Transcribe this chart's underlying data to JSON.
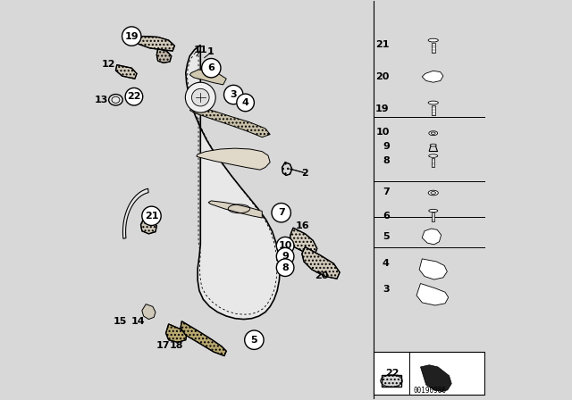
{
  "bg_color": "#d8d8d8",
  "panel_color": "#f0f0f0",
  "part_number": "00190986",
  "door_outline": {
    "x": [
      0.31,
      0.295,
      0.278,
      0.268,
      0.262,
      0.262,
      0.268,
      0.278,
      0.295,
      0.318,
      0.345,
      0.375,
      0.408,
      0.44,
      0.468,
      0.49,
      0.505,
      0.518,
      0.528,
      0.535,
      0.538,
      0.538,
      0.535,
      0.528,
      0.52,
      0.51,
      0.498,
      0.482,
      0.465,
      0.445,
      0.422,
      0.398,
      0.372,
      0.345,
      0.318,
      0.298,
      0.285,
      0.278,
      0.272,
      0.272,
      0.278,
      0.29,
      0.305,
      0.31
    ],
    "y": [
      0.895,
      0.89,
      0.878,
      0.862,
      0.842,
      0.818,
      0.792,
      0.765,
      0.738,
      0.71,
      0.682,
      0.655,
      0.628,
      0.602,
      0.578,
      0.555,
      0.532,
      0.508,
      0.482,
      0.455,
      0.425,
      0.395,
      0.365,
      0.338,
      0.315,
      0.295,
      0.278,
      0.265,
      0.255,
      0.248,
      0.245,
      0.245,
      0.25,
      0.258,
      0.268,
      0.282,
      0.3,
      0.322,
      0.348,
      0.378,
      0.408,
      0.438,
      0.468,
      0.498
    ]
  },
  "door_inner": {
    "x": [
      0.302,
      0.288,
      0.275,
      0.268,
      0.265,
      0.268,
      0.278,
      0.295,
      0.318,
      0.345,
      0.378,
      0.41,
      0.44,
      0.468,
      0.49,
      0.508,
      0.522,
      0.53,
      0.532,
      0.53,
      0.525,
      0.515,
      0.502,
      0.486,
      0.468,
      0.448,
      0.425,
      0.4,
      0.375,
      0.35,
      0.325,
      0.305,
      0.29,
      0.282,
      0.278,
      0.28,
      0.288,
      0.298,
      0.302
    ],
    "y": [
      0.882,
      0.87,
      0.852,
      0.83,
      0.805,
      0.778,
      0.75,
      0.722,
      0.694,
      0.666,
      0.638,
      0.61,
      0.584,
      0.56,
      0.538,
      0.515,
      0.49,
      0.462,
      0.432,
      0.402,
      0.375,
      0.35,
      0.33,
      0.315,
      0.302,
      0.294,
      0.288,
      0.286,
      0.288,
      0.295,
      0.305,
      0.318,
      0.335,
      0.355,
      0.378,
      0.405,
      0.435,
      0.462,
      0.488
    ]
  }
}
